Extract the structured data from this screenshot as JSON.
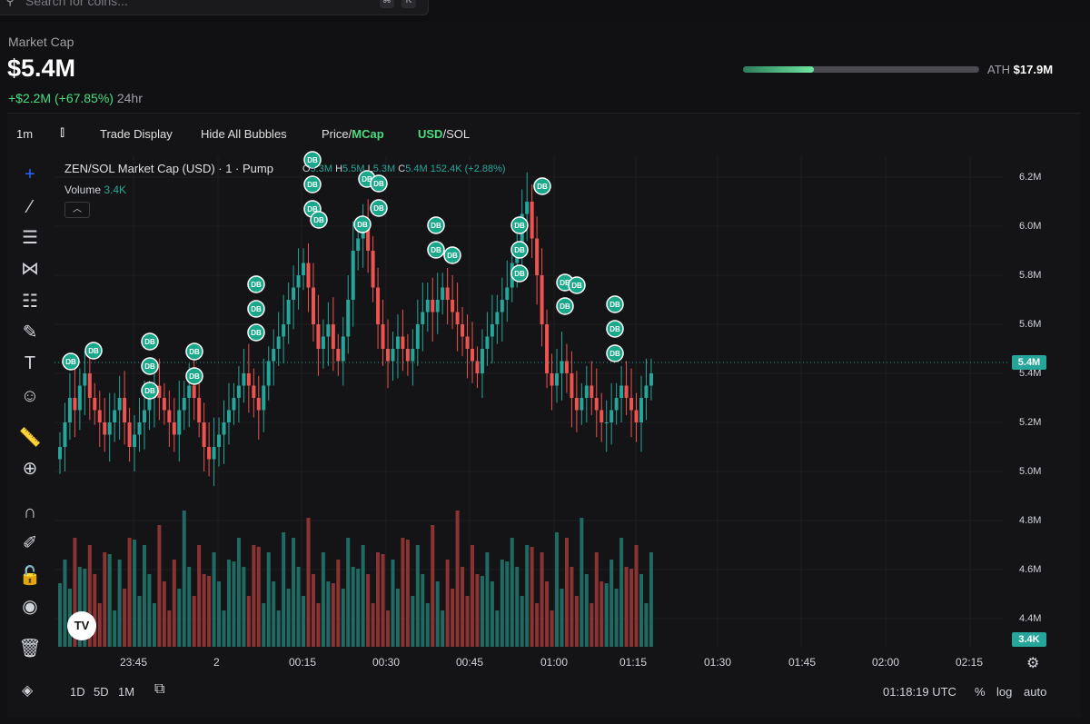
{
  "search": {
    "placeholder": "Search for coins...",
    "kbd1": "⌘",
    "kbd2": "K"
  },
  "market_cap": {
    "label": "Market Cap",
    "value": "$5.4M",
    "change": "+$2.2M (+67.85%)",
    "period": "24hr",
    "ath_label": "ATH",
    "ath_value": "$17.9M",
    "ath_progress": 0.3
  },
  "toolbar": {
    "interval": "1m",
    "trade_display": "Trade Display",
    "hide_bubbles": "Hide All Bubbles",
    "price_label": "Price",
    "mcap_label": "MCap",
    "usd_label": "USD",
    "sol_label": "SOL"
  },
  "legend": {
    "title": "ZEN/SOL Market Cap (USD) · 1 · Pump",
    "o_label": "O",
    "o_value": "5.3M",
    "h_label": "H",
    "h_value": "5.5M",
    "l_label": "L",
    "l_value": "5.3M",
    "c_label": "C",
    "c_value": "5.4M 152.4K (+2.88%)",
    "volume_label": "Volume",
    "volume_value": "3.4K"
  },
  "price_axis": [
    "6.2M",
    "6.0M",
    "5.8M",
    "5.6M",
    "5.4M",
    "5.2M",
    "5.0M",
    "4.8M",
    "4.6M",
    "4.4M"
  ],
  "current_price_badge": "5.4M",
  "current_volume_badge": "3.4K",
  "time_axis": [
    "23:45",
    "2",
    "00:15",
    "00:30",
    "00:45",
    "01:00",
    "01:15",
    "01:30",
    "01:45",
    "02:00",
    "02:15"
  ],
  "bottom_bar": {
    "ranges": [
      "1D",
      "5D",
      "1M"
    ],
    "clock": "01:18:19 UTC",
    "percent": "%",
    "log": "log",
    "auto": "auto"
  },
  "bubble_label": "DB",
  "colors": {
    "up": "#26a69a",
    "down": "#ef5350",
    "accent": "#4ade80"
  },
  "chart_data": {
    "type": "candlestick",
    "ylim": [
      4.3,
      6.3
    ],
    "candles_close": [
      5.1,
      5.2,
      5.3,
      5.25,
      5.35,
      5.4,
      5.3,
      5.25,
      5.2,
      5.15,
      5.2,
      5.25,
      5.3,
      5.2,
      5.1,
      5.15,
      5.2,
      5.25,
      5.3,
      5.35,
      5.3,
      5.25,
      5.2,
      5.15,
      5.25,
      5.3,
      5.35,
      5.3,
      5.2,
      5.1,
      5.05,
      5.1,
      5.15,
      5.2,
      5.25,
      5.3,
      5.35,
      5.4,
      5.35,
      5.3,
      5.25,
      5.35,
      5.45,
      5.5,
      5.55,
      5.6,
      5.7,
      5.75,
      5.8,
      5.85,
      5.75,
      5.6,
      5.5,
      5.55,
      5.6,
      5.5,
      5.45,
      5.55,
      5.7,
      5.9,
      5.95,
      6.0,
      5.9,
      5.75,
      5.6,
      5.5,
      5.45,
      5.5,
      5.55,
      5.5,
      5.45,
      5.5,
      5.6,
      5.65,
      5.7,
      5.65,
      5.7,
      5.75,
      5.7,
      5.65,
      5.6,
      5.55,
      5.5,
      5.45,
      5.4,
      5.5,
      5.55,
      5.6,
      5.65,
      5.7,
      5.75,
      5.85,
      5.9,
      6.05,
      6.1,
      5.95,
      5.8,
      5.6,
      5.4,
      5.35,
      5.4,
      5.45,
      5.4,
      5.3,
      5.25,
      5.3,
      5.35,
      5.3,
      5.25,
      5.2,
      5.2,
      5.25,
      5.3,
      5.35,
      5.3,
      5.25,
      5.2,
      5.3,
      5.35,
      5.4
    ],
    "volume_max": 10
  }
}
